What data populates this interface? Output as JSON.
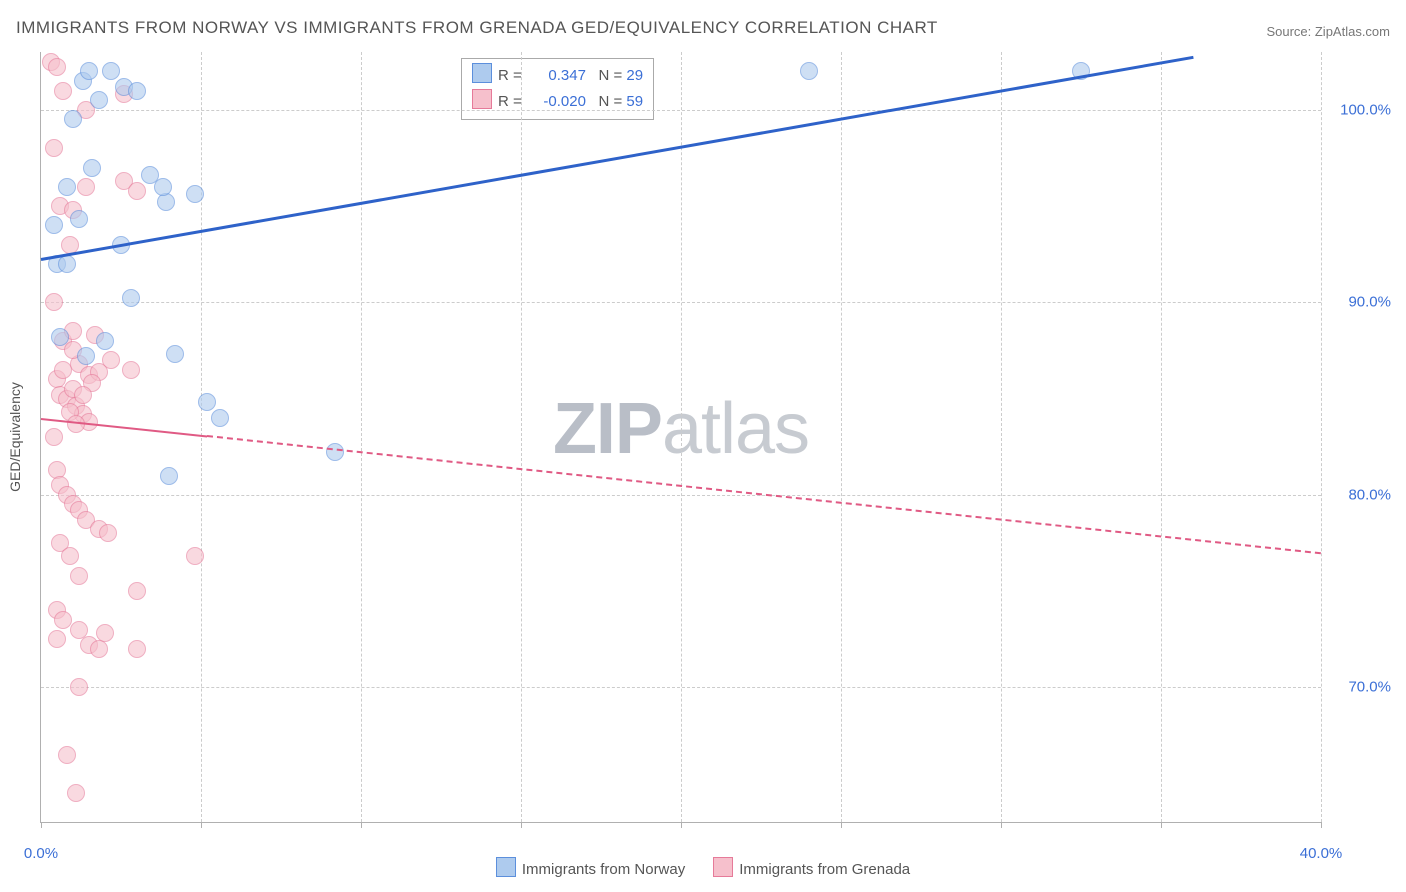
{
  "title": "IMMIGRANTS FROM NORWAY VS IMMIGRANTS FROM GRENADA GED/EQUIVALENCY CORRELATION CHART",
  "source_prefix": "Source: ",
  "source": "ZipAtlas.com",
  "watermark_a": "ZIP",
  "watermark_b": "atlas",
  "axis": {
    "y_title": "GED/Equivalency",
    "y_title_color": "#555555",
    "xlim": [
      0,
      40
    ],
    "ylim": [
      63,
      103
    ],
    "xticks": [
      0,
      5,
      10,
      15,
      20,
      25,
      30,
      35,
      40
    ],
    "xtick_labels": {
      "0": "0.0%",
      "40": "40.0%"
    },
    "xtick_label_color": "#3b6fd6",
    "yticks": [
      70,
      80,
      90,
      100
    ],
    "ytick_labels": {
      "70": "70.0%",
      "80": "80.0%",
      "90": "90.0%",
      "100": "100.0%"
    },
    "ytick_label_color": "#3b6fd6",
    "grid_color": "#cccccc"
  },
  "legend": {
    "top": {
      "rows": [
        {
          "swatch_fill": "#aecbee",
          "swatch_border": "#5c8fdc",
          "r_label": "R =",
          "r_value": "0.347",
          "r_color": "#3b6fd6",
          "n_label": "N =",
          "n_value": "29",
          "n_color": "#3b6fd6"
        },
        {
          "swatch_fill": "#f6c0cc",
          "swatch_border": "#e67a99",
          "r_label": "R =",
          "r_value": "-0.020",
          "r_color": "#3b6fd6",
          "n_label": "N =",
          "n_value": "59",
          "n_color": "#3b6fd6"
        }
      ]
    },
    "bottom": [
      {
        "swatch_fill": "#aecbee",
        "swatch_border": "#5c8fdc",
        "label": "Immigrants from Norway"
      },
      {
        "swatch_fill": "#f6c0cc",
        "swatch_border": "#e67a99",
        "label": "Immigrants from Grenada"
      }
    ]
  },
  "series": {
    "norway": {
      "fill": "#aecbee",
      "border": "#5c8fdc",
      "trend_color": "#2e62c9",
      "trend_width": 3,
      "trend_dash": "none",
      "trend": {
        "x1": 0,
        "y1": 92.3,
        "x2": 36,
        "y2": 102.8
      },
      "points": [
        [
          0.5,
          92.0
        ],
        [
          0.8,
          92.0
        ],
        [
          1.3,
          101.5
        ],
        [
          1.5,
          102.0
        ],
        [
          1.8,
          100.5
        ],
        [
          2.2,
          102.0
        ],
        [
          2.6,
          101.2
        ],
        [
          2.8,
          90.2
        ],
        [
          3.4,
          96.6
        ],
        [
          3.9,
          95.2
        ],
        [
          4.2,
          87.3
        ],
        [
          2.0,
          88.0
        ],
        [
          1.4,
          87.2
        ],
        [
          0.6,
          88.2
        ],
        [
          1.2,
          94.3
        ],
        [
          3.0,
          101.0
        ],
        [
          3.8,
          96.0
        ],
        [
          4.8,
          95.6
        ],
        [
          5.2,
          84.8
        ],
        [
          5.6,
          84.0
        ],
        [
          4.0,
          81.0
        ],
        [
          9.2,
          82.2
        ],
        [
          24.0,
          102.0
        ],
        [
          32.5,
          102.0
        ],
        [
          1.0,
          99.5
        ],
        [
          0.8,
          96.0
        ],
        [
          2.5,
          93.0
        ],
        [
          1.6,
          97.0
        ],
        [
          0.4,
          94.0
        ]
      ]
    },
    "grenada": {
      "fill": "#f6c0cc",
      "border": "#e67a99",
      "trend_color": "#e05a84",
      "trend_width": 2,
      "trend_dash": "5,5",
      "trend_solid_until_x": 5.2,
      "trend": {
        "x1": 0,
        "y1": 84.0,
        "x2": 40,
        "y2": 77.0
      },
      "points": [
        [
          0.3,
          102.5
        ],
        [
          0.5,
          102.2
        ],
        [
          0.7,
          101.0
        ],
        [
          1.4,
          100.0
        ],
        [
          2.6,
          100.8
        ],
        [
          0.4,
          98.0
        ],
        [
          0.6,
          95.0
        ],
        [
          0.9,
          93.0
        ],
        [
          1.0,
          94.8
        ],
        [
          1.4,
          96.0
        ],
        [
          2.6,
          96.3
        ],
        [
          3.0,
          95.8
        ],
        [
          0.4,
          90.0
        ],
        [
          0.7,
          88.0
        ],
        [
          1.0,
          88.5
        ],
        [
          1.2,
          86.8
        ],
        [
          1.5,
          86.2
        ],
        [
          1.8,
          86.4
        ],
        [
          2.2,
          87.0
        ],
        [
          0.5,
          86.0
        ],
        [
          0.6,
          85.2
        ],
        [
          0.8,
          85.0
        ],
        [
          1.0,
          85.5
        ],
        [
          1.1,
          84.6
        ],
        [
          1.3,
          84.2
        ],
        [
          1.5,
          83.8
        ],
        [
          1.6,
          85.8
        ],
        [
          0.4,
          83.0
        ],
        [
          0.5,
          81.3
        ],
        [
          0.6,
          80.5
        ],
        [
          0.8,
          80.0
        ],
        [
          1.0,
          79.5
        ],
        [
          1.2,
          79.2
        ],
        [
          1.4,
          78.7
        ],
        [
          1.8,
          78.2
        ],
        [
          2.1,
          78.0
        ],
        [
          0.6,
          77.5
        ],
        [
          0.9,
          76.8
        ],
        [
          1.2,
          75.8
        ],
        [
          3.0,
          75.0
        ],
        [
          4.8,
          76.8
        ],
        [
          0.5,
          74.0
        ],
        [
          0.7,
          73.5
        ],
        [
          1.2,
          73.0
        ],
        [
          1.5,
          72.2
        ],
        [
          1.8,
          72.0
        ],
        [
          2.0,
          72.8
        ],
        [
          3.0,
          72.0
        ],
        [
          1.2,
          70.0
        ],
        [
          0.5,
          72.5
        ],
        [
          0.8,
          66.5
        ],
        [
          1.1,
          64.5
        ],
        [
          0.9,
          84.3
        ],
        [
          1.1,
          83.7
        ],
        [
          1.3,
          85.2
        ],
        [
          0.7,
          86.5
        ],
        [
          1.0,
          87.5
        ],
        [
          1.7,
          88.3
        ],
        [
          2.8,
          86.5
        ]
      ]
    }
  }
}
